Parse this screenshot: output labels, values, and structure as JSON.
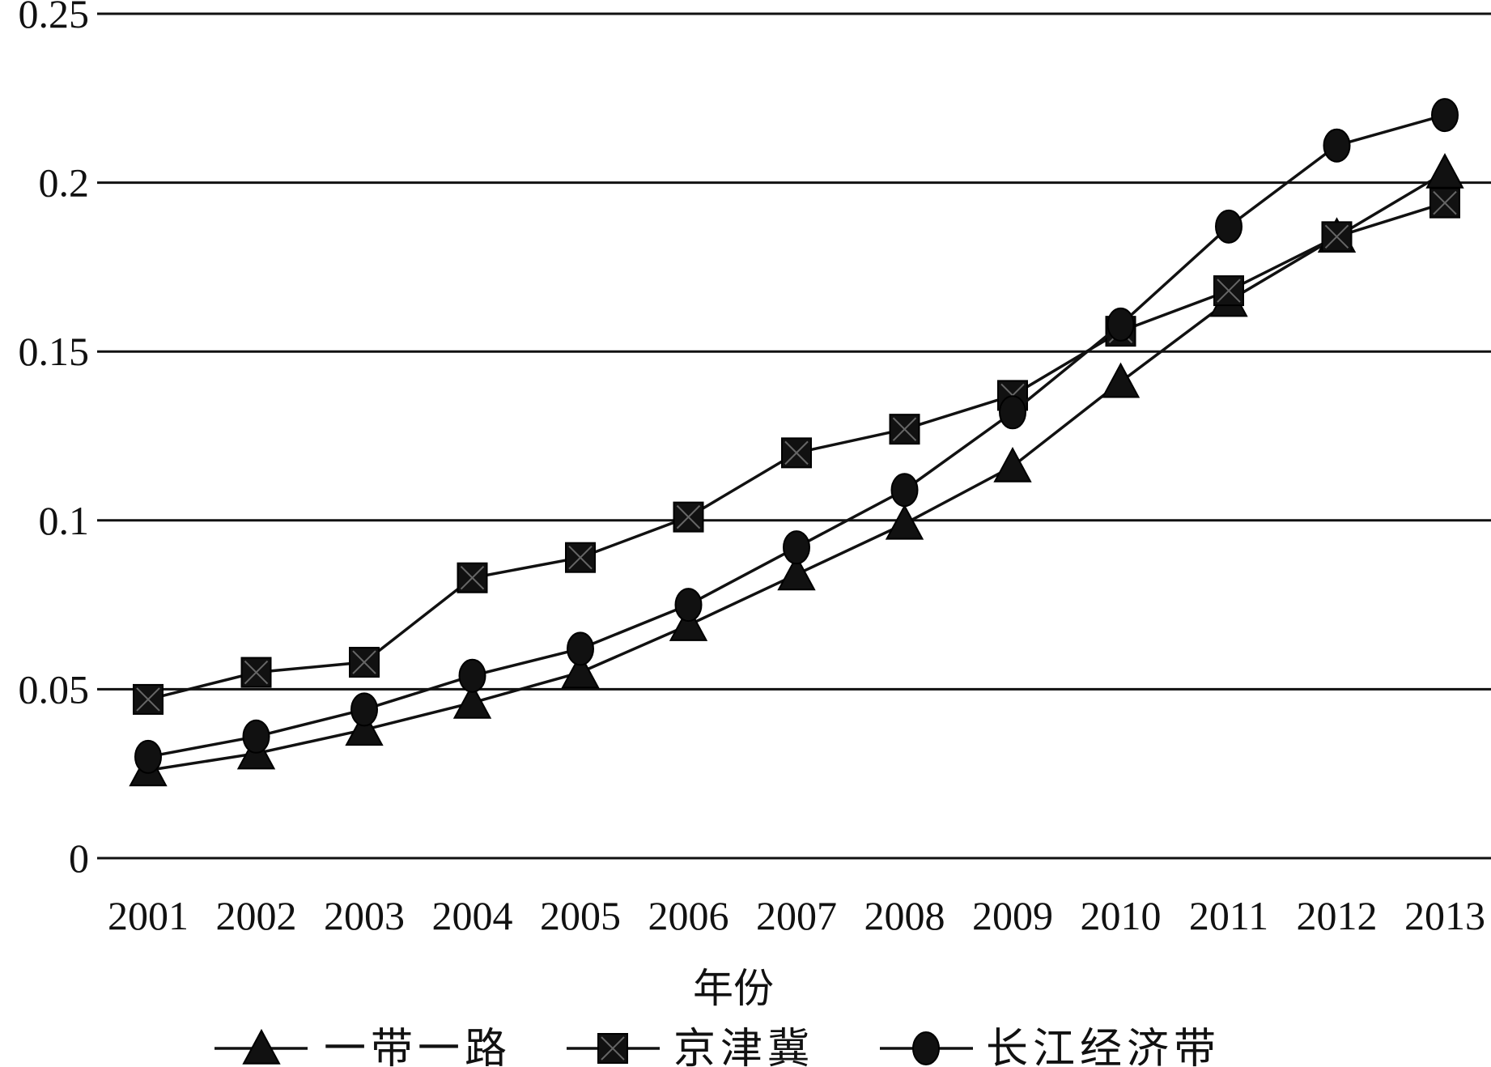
{
  "chart_data": {
    "type": "line",
    "title": "",
    "xlabel": "年份",
    "ylabel": "",
    "x": [
      "2001",
      "2002",
      "2003",
      "2004",
      "2005",
      "2006",
      "2007",
      "2008",
      "2009",
      "2010",
      "2011",
      "2012",
      "2013"
    ],
    "ylim": [
      0,
      0.25
    ],
    "yticks": [
      "0",
      "0.05",
      "0.1",
      "0.15",
      "0.2",
      "0.25"
    ],
    "grid": "horizontal",
    "legend_position": "bottom",
    "series": [
      {
        "name": "一带一路",
        "marker": "triangle",
        "values": [
          0.026,
          0.031,
          0.038,
          0.046,
          0.055,
          0.069,
          0.084,
          0.099,
          0.116,
          0.141,
          0.165,
          0.184,
          0.203
        ]
      },
      {
        "name": "京津冀",
        "marker": "square",
        "values": [
          0.047,
          0.055,
          0.058,
          0.083,
          0.089,
          0.101,
          0.12,
          0.127,
          0.137,
          0.156,
          0.168,
          0.184,
          0.194
        ]
      },
      {
        "name": "长江经济带",
        "marker": "circle",
        "values": [
          0.03,
          0.036,
          0.044,
          0.054,
          0.062,
          0.075,
          0.092,
          0.109,
          0.132,
          0.158,
          0.187,
          0.211,
          0.22
        ]
      }
    ]
  }
}
